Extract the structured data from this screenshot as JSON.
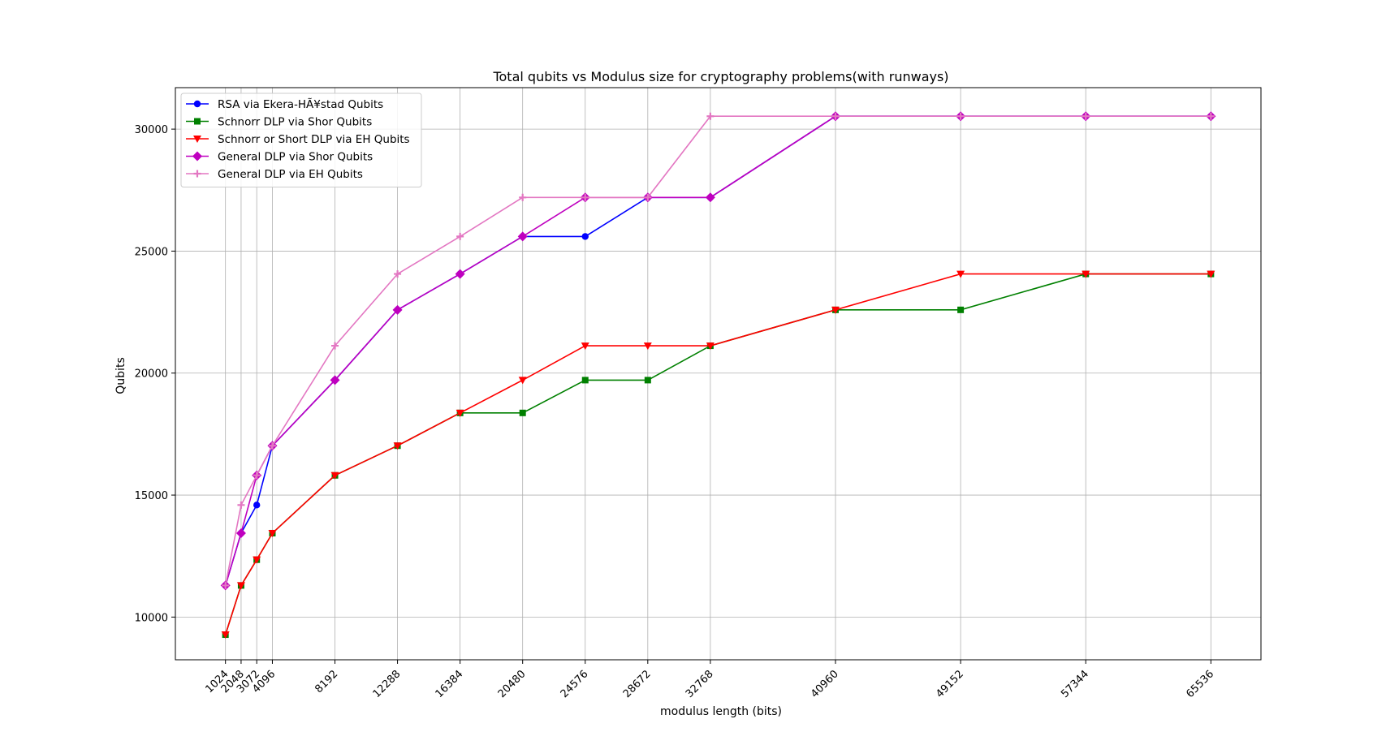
{
  "chart_data": {
    "type": "line",
    "title": "Total qubits vs Modulus size for cryptography problems(with runways)",
    "xlabel": "modulus length (bits)",
    "ylabel": "Qubits",
    "x": [
      1024,
      2048,
      3072,
      4096,
      8192,
      12288,
      16384,
      20480,
      24576,
      28672,
      32768,
      40960,
      49152,
      57344,
      65536
    ],
    "x_tick_labels": [
      "1024",
      "2048",
      "3072",
      "4096",
      "8192",
      "12288",
      "16384",
      "20480",
      "24576",
      "28672",
      "32768",
      "40960",
      "49152",
      "57344",
      "65536"
    ],
    "y_ticks": [
      10000,
      15000,
      20000,
      25000,
      30000
    ],
    "y_tick_labels": [
      "10000",
      "15000",
      "20000",
      "25000",
      "30000"
    ],
    "xlim": [
      -2254,
      68814
    ],
    "ylim": [
      8250,
      31700
    ],
    "grid": true,
    "legend_position": "upper-left",
    "series": [
      {
        "name": "RSA via Ekera-HÃ¥stad Qubits",
        "color": "#0000ff",
        "marker": "circle",
        "values": [
          11296,
          13440,
          14592,
          17024,
          19712,
          22592,
          24064,
          25600,
          25600,
          27200,
          27200,
          30528,
          30528,
          30528,
          30528
        ]
      },
      {
        "name": "Schnorr DLP via Shor Qubits",
        "color": "#008000",
        "marker": "square",
        "values": [
          9280,
          11296,
          12352,
          13440,
          15808,
          17024,
          18368,
          18368,
          19712,
          19712,
          21120,
          22592,
          22592,
          24064,
          24064
        ]
      },
      {
        "name": "Schnorr or Short DLP via EH Qubits",
        "color": "#ff0000",
        "marker": "triangle-down",
        "values": [
          9280,
          11296,
          12352,
          13440,
          15808,
          17024,
          18368,
          19712,
          21120,
          21120,
          21120,
          22592,
          24064,
          24064,
          24064
        ]
      },
      {
        "name": "General DLP via Shor Qubits",
        "color": "#bf00bf",
        "marker": "diamond",
        "values": [
          11296,
          13440,
          15808,
          17024,
          19712,
          22592,
          24064,
          25600,
          27200,
          27200,
          27200,
          30528,
          30528,
          30528,
          30528
        ]
      },
      {
        "name": "General DLP via EH Qubits",
        "color": "#e377c2",
        "marker": "plus",
        "values": [
          11296,
          14592,
          15808,
          17024,
          21120,
          24064,
          25600,
          27200,
          27200,
          27200,
          30528,
          30528,
          30528,
          30528,
          30528
        ]
      }
    ]
  }
}
